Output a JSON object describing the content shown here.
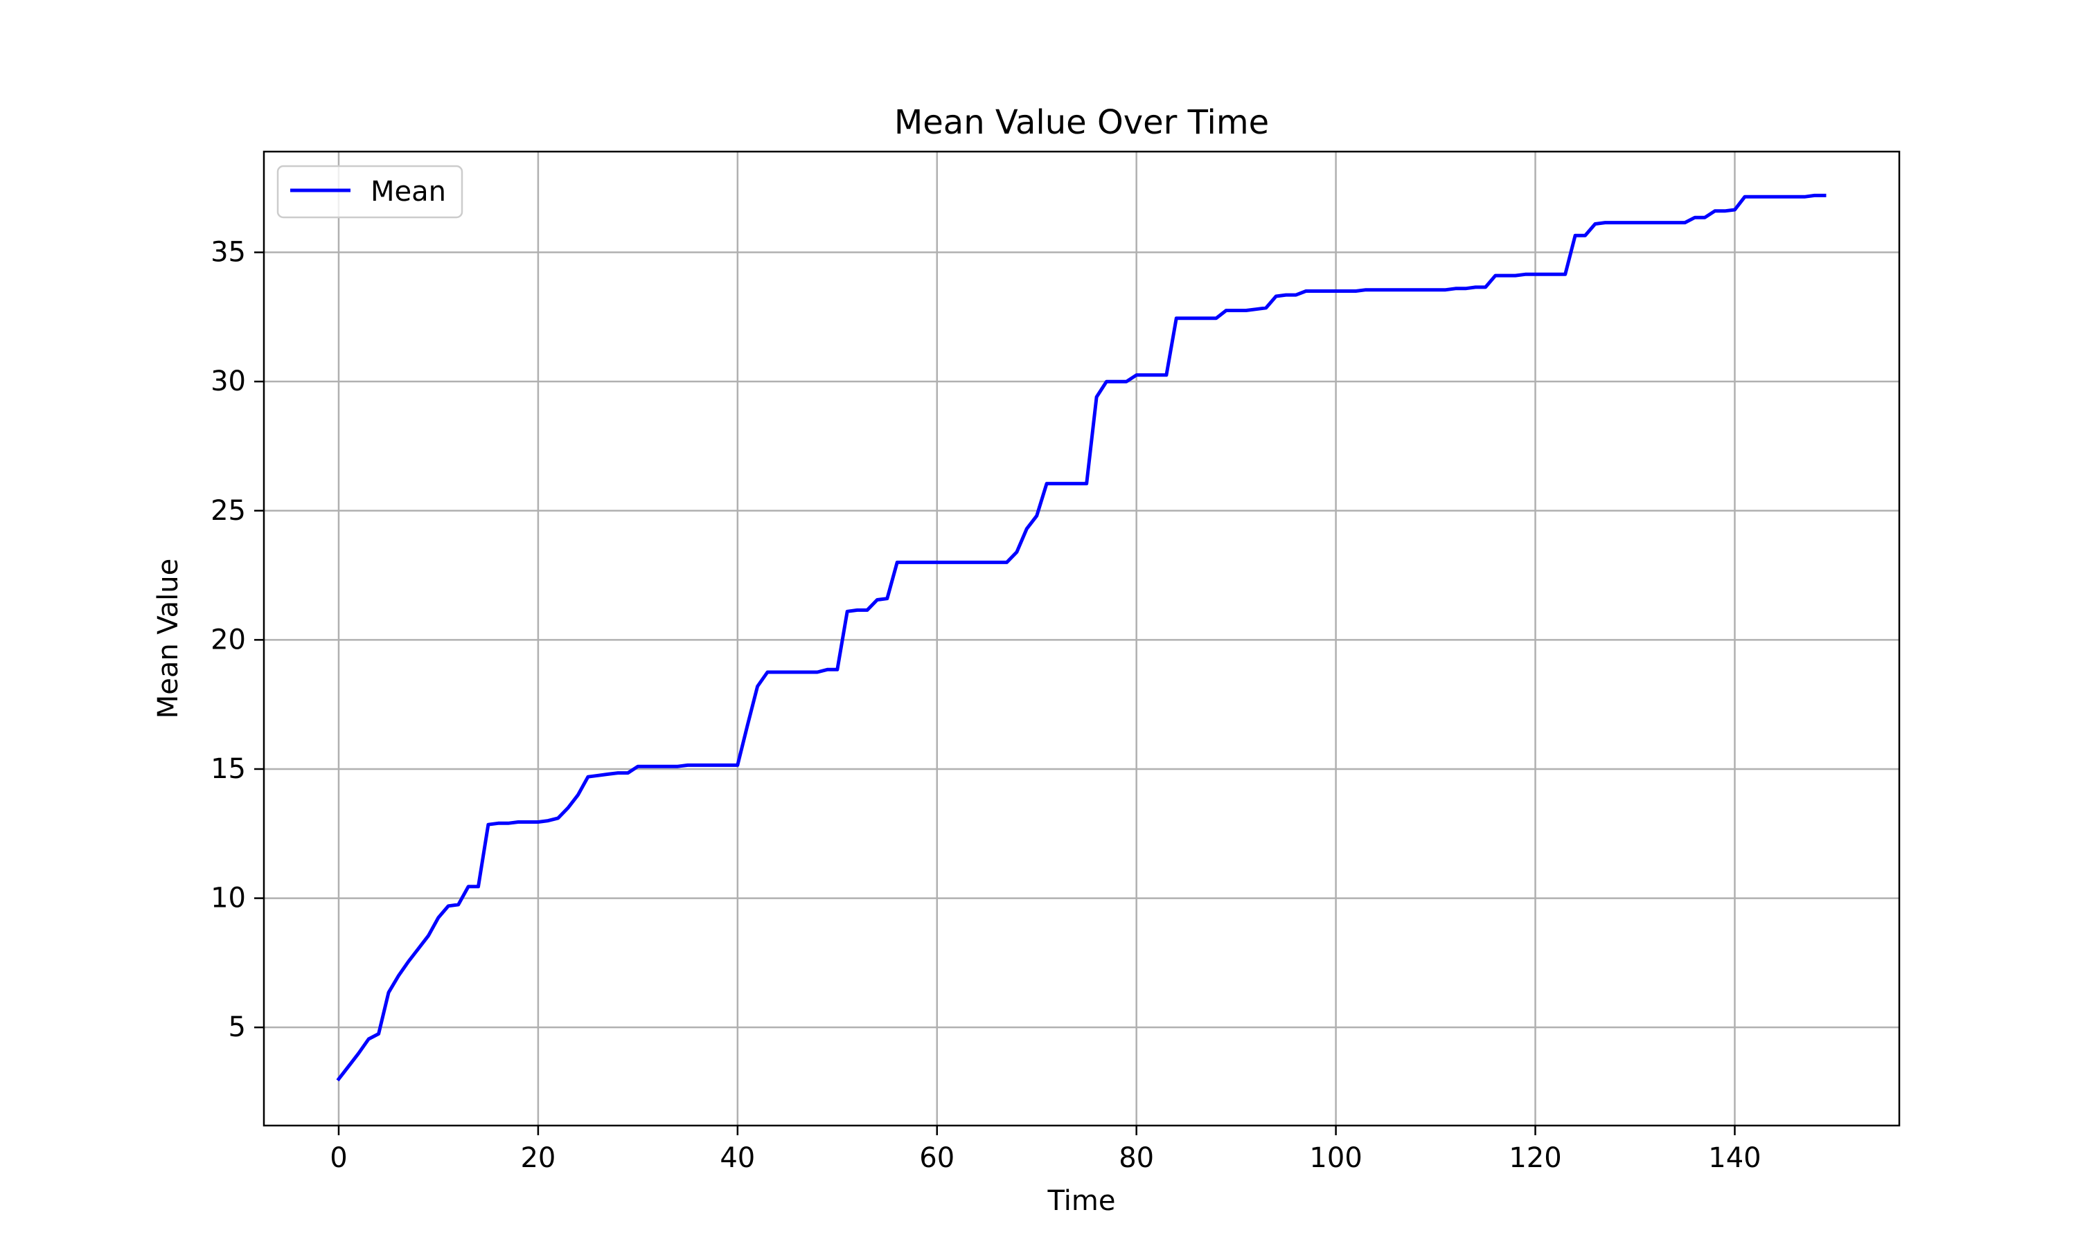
{
  "chart_data": {
    "type": "line",
    "title": "Mean Value Over Time",
    "xlabel": "Time",
    "ylabel": "Mean Value",
    "xlim": [
      -7.5,
      156.5
    ],
    "ylim": [
      1.2,
      38.9
    ],
    "xticks": [
      0,
      20,
      40,
      60,
      80,
      100,
      120,
      140
    ],
    "yticks": [
      5,
      10,
      15,
      20,
      25,
      30,
      35
    ],
    "grid": true,
    "legend_position": "upper left",
    "series": [
      {
        "name": "Mean",
        "color": "#0000ff",
        "x": [
          0,
          1,
          2,
          3,
          4,
          5,
          6,
          7,
          8,
          9,
          10,
          11,
          12,
          13,
          14,
          15,
          16,
          17,
          18,
          19,
          20,
          21,
          22,
          23,
          24,
          25,
          26,
          27,
          28,
          29,
          30,
          31,
          32,
          33,
          34,
          35,
          36,
          37,
          38,
          39,
          40,
          41,
          42,
          43,
          44,
          45,
          46,
          47,
          48,
          49,
          50,
          51,
          52,
          53,
          54,
          55,
          56,
          57,
          58,
          59,
          60,
          61,
          62,
          63,
          64,
          65,
          66,
          67,
          68,
          69,
          70,
          71,
          72,
          73,
          74,
          75,
          76,
          77,
          78,
          79,
          80,
          81,
          82,
          83,
          84,
          85,
          86,
          87,
          88,
          89,
          90,
          91,
          92,
          93,
          94,
          95,
          96,
          97,
          98,
          99,
          100,
          101,
          102,
          103,
          104,
          105,
          106,
          107,
          108,
          109,
          110,
          111,
          112,
          113,
          114,
          115,
          116,
          117,
          118,
          119,
          120,
          121,
          122,
          123,
          124,
          125,
          126,
          127,
          128,
          129,
          130,
          131,
          132,
          133,
          134,
          135,
          136,
          137,
          138,
          139,
          140,
          141,
          142,
          143,
          144,
          145,
          146,
          147,
          148,
          149
        ],
        "values": [
          3.0,
          3.5,
          4.0,
          4.55,
          4.75,
          6.35,
          7.0,
          7.55,
          8.05,
          8.55,
          9.25,
          9.7,
          9.75,
          10.45,
          10.45,
          12.85,
          12.9,
          12.9,
          12.95,
          12.95,
          12.95,
          13.0,
          13.1,
          13.5,
          14.0,
          14.7,
          14.75,
          14.8,
          14.85,
          14.85,
          15.1,
          15.1,
          15.1,
          15.1,
          15.1,
          15.15,
          15.15,
          15.15,
          15.15,
          15.15,
          15.15,
          16.7,
          18.2,
          18.75,
          18.75,
          18.75,
          18.75,
          18.75,
          18.75,
          18.85,
          18.85,
          21.1,
          21.15,
          21.15,
          21.55,
          21.6,
          23.0,
          23.0,
          23.0,
          23.0,
          23.0,
          23.0,
          23.0,
          23.0,
          23.0,
          23.0,
          23.0,
          23.0,
          23.4,
          24.3,
          24.8,
          26.05,
          26.05,
          26.05,
          26.05,
          26.05,
          29.4,
          30.0,
          30.0,
          30.0,
          30.25,
          30.25,
          30.25,
          30.25,
          32.45,
          32.45,
          32.45,
          32.45,
          32.45,
          32.75,
          32.75,
          32.75,
          32.8,
          32.85,
          33.3,
          33.35,
          33.35,
          33.5,
          33.5,
          33.5,
          33.5,
          33.5,
          33.5,
          33.55,
          33.55,
          33.55,
          33.55,
          33.55,
          33.55,
          33.55,
          33.55,
          33.55,
          33.6,
          33.6,
          33.65,
          33.65,
          34.1,
          34.1,
          34.1,
          34.15,
          34.15,
          34.15,
          34.15,
          34.15,
          35.65,
          35.65,
          36.1,
          36.15,
          36.15,
          36.15,
          36.15,
          36.15,
          36.15,
          36.15,
          36.15,
          36.15,
          36.35,
          36.35,
          36.6,
          36.6,
          36.65,
          37.15,
          37.15,
          37.15,
          37.15,
          37.15,
          37.15,
          37.15,
          37.2,
          37.2
        ]
      }
    ]
  }
}
